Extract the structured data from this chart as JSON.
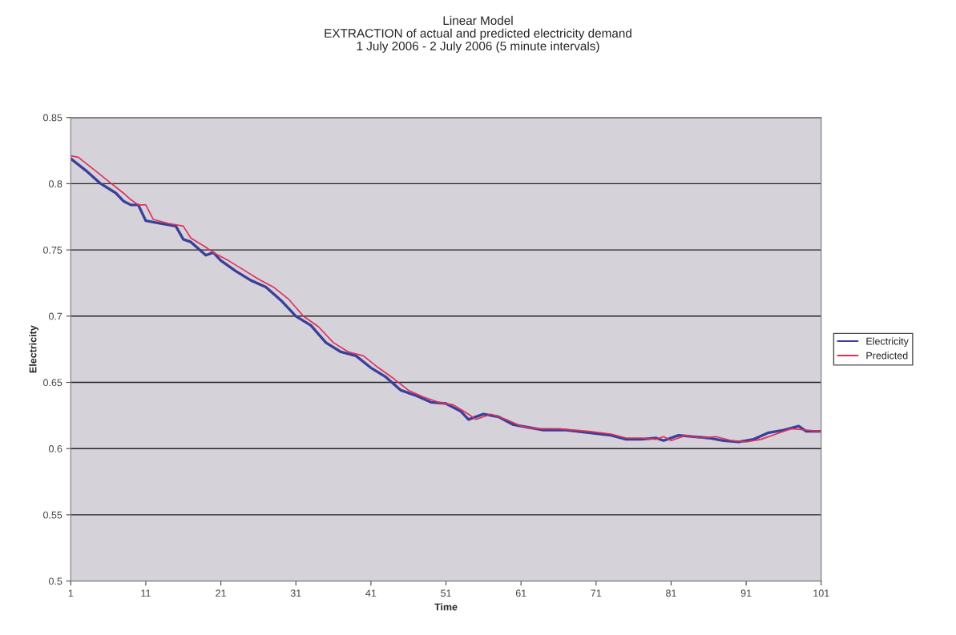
{
  "chart_data": {
    "type": "line",
    "title": "Linear Model\nEXTRACTION of actual and predicted electricity demand\n1 July 2006 - 2 July 2006 (5 minute intervals)",
    "xlabel": "Time",
    "ylabel": "Electricity",
    "xlim": [
      1,
      101
    ],
    "xticks": [
      1,
      11,
      21,
      31,
      41,
      51,
      61,
      71,
      81,
      91,
      101
    ],
    "ylim": [
      0.5,
      0.85
    ],
    "yticks": [
      {
        "value": 0.5,
        "label": "0.5"
      },
      {
        "value": 0.55,
        "label": "0.55"
      },
      {
        "value": 0.6,
        "label": "0.6"
      },
      {
        "value": 0.65,
        "label": "0.65"
      },
      {
        "value": 0.7,
        "label": "0.7"
      },
      {
        "value": 0.75,
        "label": "0.75"
      },
      {
        "value": 0.8,
        "label": "0.8"
      },
      {
        "value": 0.85,
        "label": "0.85"
      }
    ],
    "grid": "y",
    "legend": "right",
    "marker": "none",
    "line_style": "solid",
    "series": [
      {
        "name": "Electricity",
        "color": "#3a3f9a",
        "x": [
          1,
          3,
          5,
          7,
          8,
          9,
          10,
          11,
          13,
          15,
          16,
          17,
          19,
          20,
          21,
          23,
          25,
          27,
          29,
          31,
          33,
          35,
          37,
          39,
          41,
          43,
          45,
          47,
          49,
          51,
          53,
          54,
          56,
          58,
          60,
          62,
          64,
          67,
          70,
          73,
          75,
          77,
          79,
          80,
          82,
          84,
          86,
          88,
          90,
          92,
          94,
          96,
          98,
          99,
          101
        ],
        "values": [
          0.819,
          0.81,
          0.8,
          0.793,
          0.787,
          0.784,
          0.784,
          0.772,
          0.77,
          0.768,
          0.758,
          0.756,
          0.746,
          0.748,
          0.742,
          0.734,
          0.727,
          0.722,
          0.712,
          0.7,
          0.693,
          0.68,
          0.673,
          0.67,
          0.661,
          0.654,
          0.644,
          0.64,
          0.635,
          0.634,
          0.628,
          0.622,
          0.626,
          0.624,
          0.618,
          0.616,
          0.614,
          0.614,
          0.612,
          0.61,
          0.607,
          0.607,
          0.608,
          0.606,
          0.61,
          0.609,
          0.608,
          0.606,
          0.605,
          0.607,
          0.612,
          0.614,
          0.617,
          0.613,
          0.613
        ]
      },
      {
        "name": "Predicted",
        "color": "#e0305a",
        "x": [
          1,
          2,
          4,
          6,
          8,
          9,
          10,
          11,
          12,
          14,
          16,
          17,
          19,
          20,
          22,
          24,
          26,
          28,
          30,
          32,
          34,
          36,
          38,
          40,
          42,
          44,
          46,
          48,
          50,
          52,
          54,
          55,
          57,
          59,
          61,
          63,
          66,
          70,
          73,
          75,
          77,
          79,
          80,
          81,
          83,
          85,
          87,
          89,
          91,
          93,
          95,
          97,
          99,
          101
        ],
        "values": [
          0.821,
          0.82,
          0.811,
          0.802,
          0.793,
          0.788,
          0.784,
          0.784,
          0.773,
          0.77,
          0.768,
          0.759,
          0.752,
          0.748,
          0.742,
          0.735,
          0.728,
          0.722,
          0.713,
          0.7,
          0.692,
          0.68,
          0.673,
          0.67,
          0.661,
          0.653,
          0.644,
          0.639,
          0.635,
          0.633,
          0.626,
          0.622,
          0.626,
          0.622,
          0.617,
          0.615,
          0.615,
          0.613,
          0.611,
          0.608,
          0.608,
          0.607,
          0.609,
          0.606,
          0.61,
          0.608,
          0.609,
          0.606,
          0.605,
          0.607,
          0.611,
          0.615,
          0.614,
          0.613
        ]
      }
    ]
  }
}
